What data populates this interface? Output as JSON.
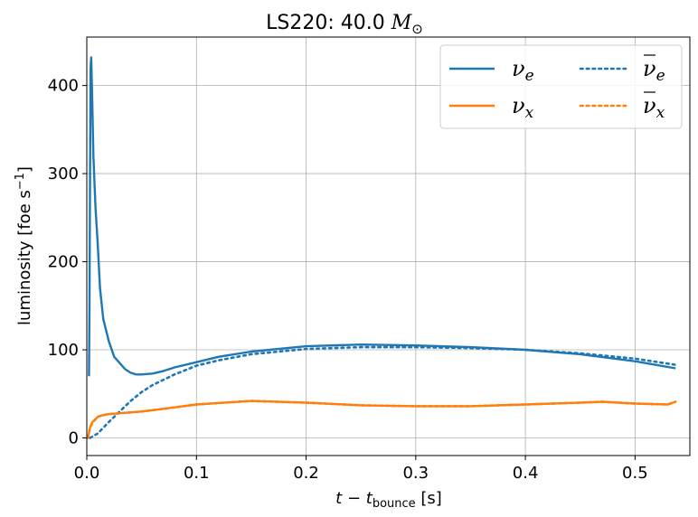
{
  "chart_data": {
    "type": "line",
    "title_main": "LS220: 40.0 ",
    "title_mass_symbol": "M",
    "title_mass_subscript": "⊙",
    "xlabel_main": "t − t",
    "xlabel_subscript": "bounce",
    "xlabel_unit": " [s]",
    "ylabel_main": "luminosity [foe s",
    "ylabel_superscript": "−1",
    "ylabel_end": "]",
    "xlim": [
      0.0,
      0.55
    ],
    "ylim": [
      -20,
      455
    ],
    "xticks": [
      0.0,
      0.1,
      0.2,
      0.3,
      0.4,
      0.5
    ],
    "xtick_labels": [
      "0.0",
      "0.1",
      "0.2",
      "0.3",
      "0.4",
      "0.5"
    ],
    "yticks": [
      0,
      100,
      200,
      300,
      400
    ],
    "ytick_labels": [
      "0",
      "100",
      "200",
      "300",
      "400"
    ],
    "grid": true,
    "legend_position": "top-right",
    "series": [
      {
        "name": "ν",
        "subscript": "e",
        "overline": false,
        "color": "#1f77b4",
        "style": "solid",
        "x": [
          0.002,
          0.0025,
          0.003,
          0.0035,
          0.004,
          0.005,
          0.006,
          0.008,
          0.01,
          0.012,
          0.015,
          0.02,
          0.025,
          0.03,
          0.035,
          0.04,
          0.045,
          0.05,
          0.06,
          0.07,
          0.08,
          0.1,
          0.12,
          0.15,
          0.2,
          0.25,
          0.3,
          0.35,
          0.4,
          0.45,
          0.5,
          0.537
        ],
        "y": [
          70,
          150,
          300,
          420,
          432,
          380,
          320,
          260,
          220,
          170,
          135,
          110,
          92,
          85,
          78,
          74,
          72,
          72,
          73,
          76,
          80,
          86,
          92,
          98,
          104,
          106,
          105,
          103,
          100,
          95,
          87,
          79
        ]
      },
      {
        "name": "ν",
        "subscript": "x",
        "overline": false,
        "color": "#ff7f0e",
        "style": "solid",
        "x": [
          0.001,
          0.003,
          0.005,
          0.007,
          0.01,
          0.015,
          0.02,
          0.03,
          0.05,
          0.07,
          0.1,
          0.15,
          0.2,
          0.25,
          0.3,
          0.35,
          0.4,
          0.45,
          0.47,
          0.5,
          0.53,
          0.537
        ],
        "y": [
          0,
          12,
          18,
          20,
          24,
          26,
          27,
          28,
          30,
          33,
          38,
          42,
          40,
          37,
          36,
          36,
          38,
          40,
          41,
          39,
          38,
          41
        ]
      },
      {
        "name": "ν",
        "subscript": "e",
        "overline": true,
        "color": "#1f77b4",
        "style": "dotted",
        "x": [
          0.003,
          0.01,
          0.02,
          0.03,
          0.04,
          0.05,
          0.06,
          0.08,
          0.1,
          0.12,
          0.15,
          0.2,
          0.25,
          0.3,
          0.35,
          0.4,
          0.45,
          0.5,
          0.537
        ],
        "y": [
          0,
          5,
          18,
          30,
          42,
          52,
          60,
          72,
          82,
          88,
          95,
          101,
          103,
          103,
          102,
          100,
          96,
          90,
          83
        ]
      },
      {
        "name": "ν",
        "subscript": "x",
        "overline": true,
        "color": "#ff7f0e",
        "style": "dotted",
        "x": [
          0.001,
          0.003,
          0.005,
          0.007,
          0.01,
          0.015,
          0.02,
          0.03,
          0.05,
          0.07,
          0.1,
          0.15,
          0.2,
          0.25,
          0.3,
          0.35,
          0.4,
          0.45,
          0.47,
          0.5,
          0.53,
          0.537
        ],
        "y": [
          0,
          11,
          17,
          20,
          24,
          26,
          27,
          28,
          30,
          33,
          38,
          42,
          40,
          37,
          36,
          36,
          38,
          40,
          41,
          39,
          38,
          41
        ]
      }
    ]
  }
}
